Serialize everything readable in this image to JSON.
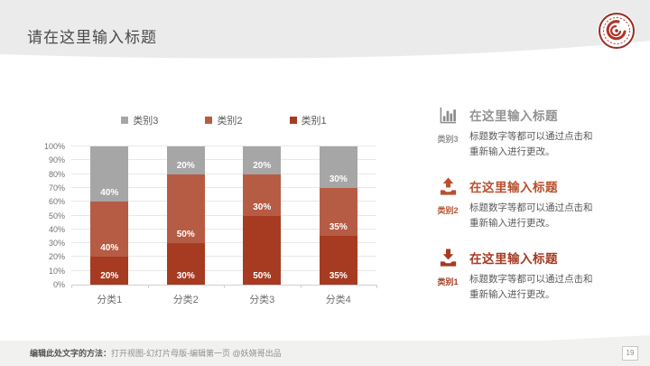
{
  "slide": {
    "title": "请在这里输入标题",
    "page_number": "19",
    "footer_bold": "编辑此处文字的方法：",
    "footer_rest": "打开视图-幻灯片母版-编辑第一页 @妖娆哥出品"
  },
  "colors": {
    "header_band": "#ebebeb",
    "footer_band": "#f1f1ef",
    "logo_red": "#9a2b22",
    "series1": "#a63b22",
    "series2": "#b65c45",
    "series3": "#a6a6a6"
  },
  "chart_data": {
    "type": "bar",
    "stacked": true,
    "percent": true,
    "title": "",
    "xlabel": "",
    "ylabel": "",
    "categories": [
      "分类1",
      "分类2",
      "分类3",
      "分类4"
    ],
    "series": [
      {
        "name": "类别1",
        "color": "#a63b22",
        "values": [
          20,
          30,
          50,
          35
        ]
      },
      {
        "name": "类别2",
        "color": "#b65c45",
        "values": [
          40,
          50,
          30,
          35
        ]
      },
      {
        "name": "类别3",
        "color": "#a6a6a6",
        "values": [
          40,
          20,
          20,
          30
        ]
      }
    ],
    "ylim": [
      0,
      100
    ],
    "ytick_step": 10,
    "ytick_suffix": "%",
    "grid": true,
    "legend_position": "top",
    "legend_order": [
      "类别3",
      "类别2",
      "类别1"
    ],
    "data_labels": "inside-end"
  },
  "right_panel": {
    "items": [
      {
        "icon": "bar-chart-icon",
        "label": "类别3",
        "title": "在这里输入标题",
        "body": "标题数字等都可以通过点击和重新输入进行更改。",
        "color": "#929292"
      },
      {
        "icon": "upload-icon",
        "label": "类别2",
        "title": "在这里输入标题",
        "body": "标题数字等都可以通过点击和重新输入进行更改。",
        "color": "#b8502e"
      },
      {
        "icon": "download-icon",
        "label": "类别1",
        "title": "在这里输入标题",
        "body": "标题数字等都可以通过点击和重新输入进行更改。",
        "color": "#a63b22"
      }
    ]
  }
}
